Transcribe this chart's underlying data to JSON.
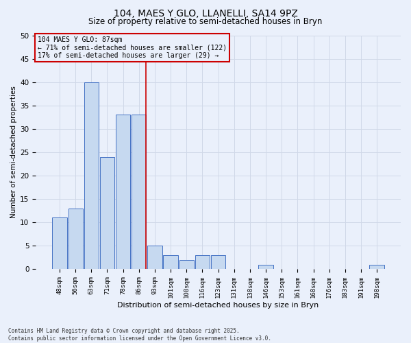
{
  "title_line1": "104, MAES Y GLO, LLANELLI, SA14 9PZ",
  "title_line2": "Size of property relative to semi-detached houses in Bryn",
  "xlabel": "Distribution of semi-detached houses by size in Bryn",
  "ylabel": "Number of semi-detached properties",
  "categories": [
    "48sqm",
    "56sqm",
    "63sqm",
    "71sqm",
    "78sqm",
    "86sqm",
    "93sqm",
    "101sqm",
    "108sqm",
    "116sqm",
    "123sqm",
    "131sqm",
    "138sqm",
    "146sqm",
    "153sqm",
    "161sqm",
    "168sqm",
    "176sqm",
    "183sqm",
    "191sqm",
    "198sqm"
  ],
  "values": [
    11,
    13,
    40,
    24,
    33,
    33,
    5,
    3,
    2,
    3,
    3,
    0,
    0,
    1,
    0,
    0,
    0,
    0,
    0,
    0,
    1
  ],
  "bar_color": "#c6d9f0",
  "bar_edge_color": "#4472c4",
  "grid_color": "#d0d8e8",
  "background_color": "#eaf0fb",
  "annotation_text": "104 MAES Y GLO: 87sqm\n← 71% of semi-detached houses are smaller (122)\n17% of semi-detached houses are larger (29) →",
  "vline_x_index": 5,
  "vline_color": "#cc0000",
  "annotation_box_color": "#cc0000",
  "ylim": [
    0,
    50
  ],
  "yticks": [
    0,
    5,
    10,
    15,
    20,
    25,
    30,
    35,
    40,
    45,
    50
  ],
  "footnote": "Contains HM Land Registry data © Crown copyright and database right 2025.\nContains public sector information licensed under the Open Government Licence v3.0."
}
